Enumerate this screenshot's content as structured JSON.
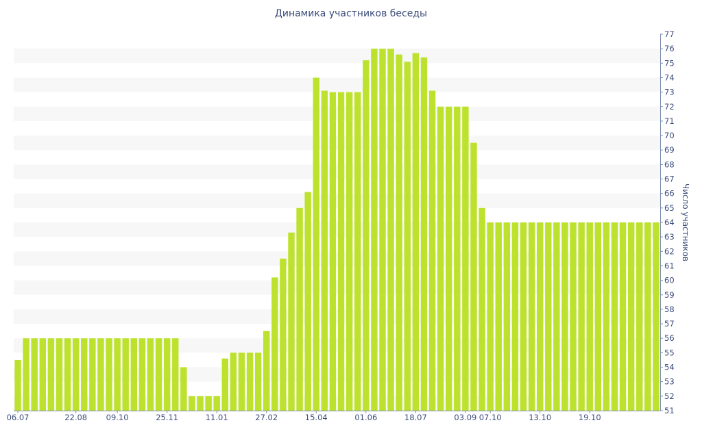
{
  "chart_data": {
    "type": "bar",
    "title": "Динамика участников беседы",
    "xlabel": "",
    "ylabel": "Число участников",
    "ylim": [
      51,
      77
    ],
    "yticks": [
      51,
      52,
      53,
      54,
      55,
      56,
      57,
      58,
      59,
      60,
      61,
      62,
      63,
      64,
      65,
      66,
      67,
      68,
      69,
      70,
      71,
      72,
      73,
      74,
      75,
      76,
      77
    ],
    "x_tick_labels": [
      "06.07",
      "22.08",
      "09.10",
      "25.11",
      "11.01",
      "27.02",
      "15.04",
      "01.06",
      "18.07",
      "03.09",
      "07.10",
      "13.10",
      "19.10"
    ],
    "x_tick_positions": [
      0,
      7,
      12,
      18,
      24,
      30,
      36,
      42,
      48,
      54,
      57,
      63,
      69
    ],
    "grid": "horizontal-bands",
    "bar_color": "#bde22d",
    "values": [
      54.5,
      56,
      56,
      56,
      56,
      56,
      56,
      56,
      56,
      56,
      56,
      56,
      56,
      56,
      56,
      56,
      56,
      56,
      56,
      56,
      54,
      52,
      52,
      52,
      52,
      54.6,
      55,
      55,
      55,
      55,
      56.5,
      60.2,
      61.5,
      63.3,
      65,
      66.1,
      74,
      73.1,
      73,
      73,
      73,
      73,
      75.2,
      76,
      76,
      76,
      75.6,
      75.1,
      75.7,
      75.4,
      73.1,
      72,
      72,
      72,
      72,
      69.5,
      65,
      64,
      64,
      64,
      64,
      64,
      64,
      64,
      64,
      64,
      64,
      64,
      64,
      64,
      64,
      64,
      64,
      64,
      64,
      64,
      64,
      64
    ]
  }
}
